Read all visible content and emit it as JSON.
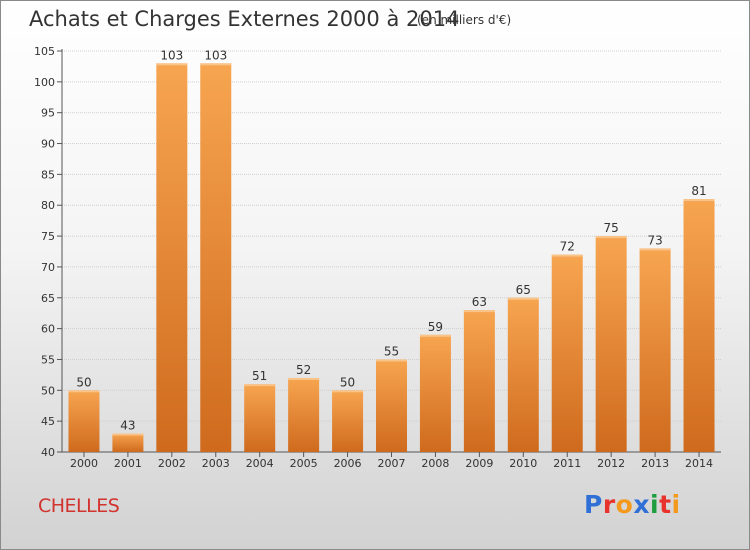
{
  "header": {
    "title": "Achats et Charges Externes 2000 à 2014",
    "subtitle": "(en milliers d'€)"
  },
  "footer": {
    "city": "CHELLES",
    "logo_text": "Proxiti"
  },
  "colors": {
    "bar_top": "#f7a550",
    "bar_bottom": "#cf6a1d",
    "city": "#d2332d",
    "logo": [
      "#2f6fd6",
      "#e8322c",
      "#f39a1e",
      "#2f6fd6",
      "#1e9e3e",
      "#e8322c",
      "#f39a1e"
    ]
  },
  "chart_data": {
    "type": "bar",
    "categories": [
      "2000",
      "2001",
      "2002",
      "2003",
      "2004",
      "2005",
      "2006",
      "2007",
      "2008",
      "2009",
      "2010",
      "2011",
      "2012",
      "2013",
      "2014"
    ],
    "values": [
      50,
      43,
      103,
      103,
      51,
      52,
      50,
      55,
      59,
      63,
      65,
      72,
      75,
      73,
      81
    ],
    "ylim": [
      40,
      105
    ],
    "yticks": [
      40,
      45,
      50,
      55,
      60,
      65,
      70,
      75,
      80,
      85,
      90,
      95,
      100,
      105
    ],
    "grid": true,
    "legend": "none"
  }
}
